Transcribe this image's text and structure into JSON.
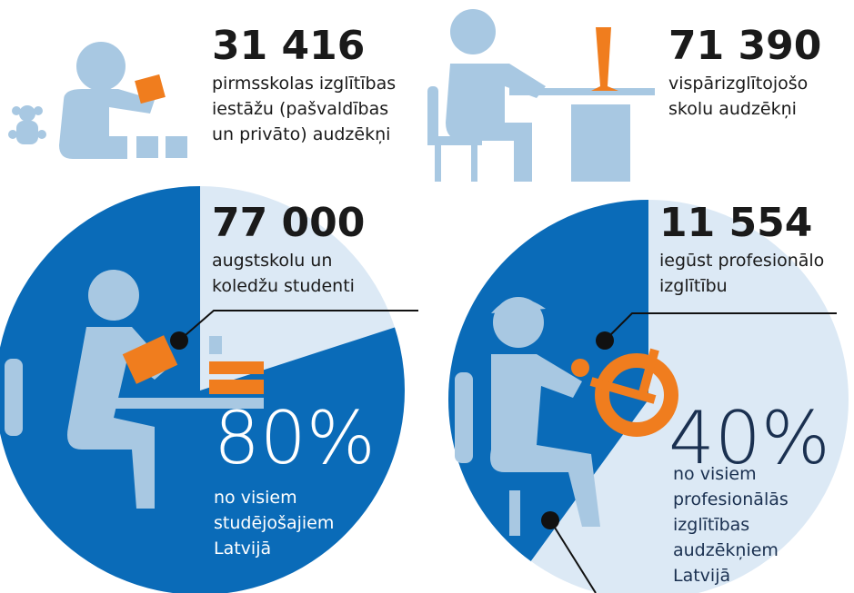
{
  "items": [
    {
      "number": "31 416",
      "lines": [
        "pirmsskolas izglītības",
        "iestāžu (pašvaldības",
        "un privāto) audzēkņi"
      ]
    },
    {
      "number": "71 390",
      "lines": [
        "vispārizglītojošo",
        "skolu audzēkņi"
      ]
    },
    {
      "number": "77 000",
      "lines": [
        "augstskolu un",
        "koledžu studenti"
      ]
    },
    {
      "number": "11 554",
      "lines": [
        "iegūst profesionālo",
        "izglītību"
      ]
    }
  ],
  "stats": [
    {
      "value": 80,
      "label": "80%",
      "lines": [
        "no visiem",
        "studējošajiem",
        "Latvijā"
      ]
    },
    {
      "value": 40,
      "label": "40%",
      "lines": [
        "no visiem",
        "profesionālās",
        "izglītības",
        "audzēkņiem",
        "Latvijā"
      ]
    }
  ]
}
